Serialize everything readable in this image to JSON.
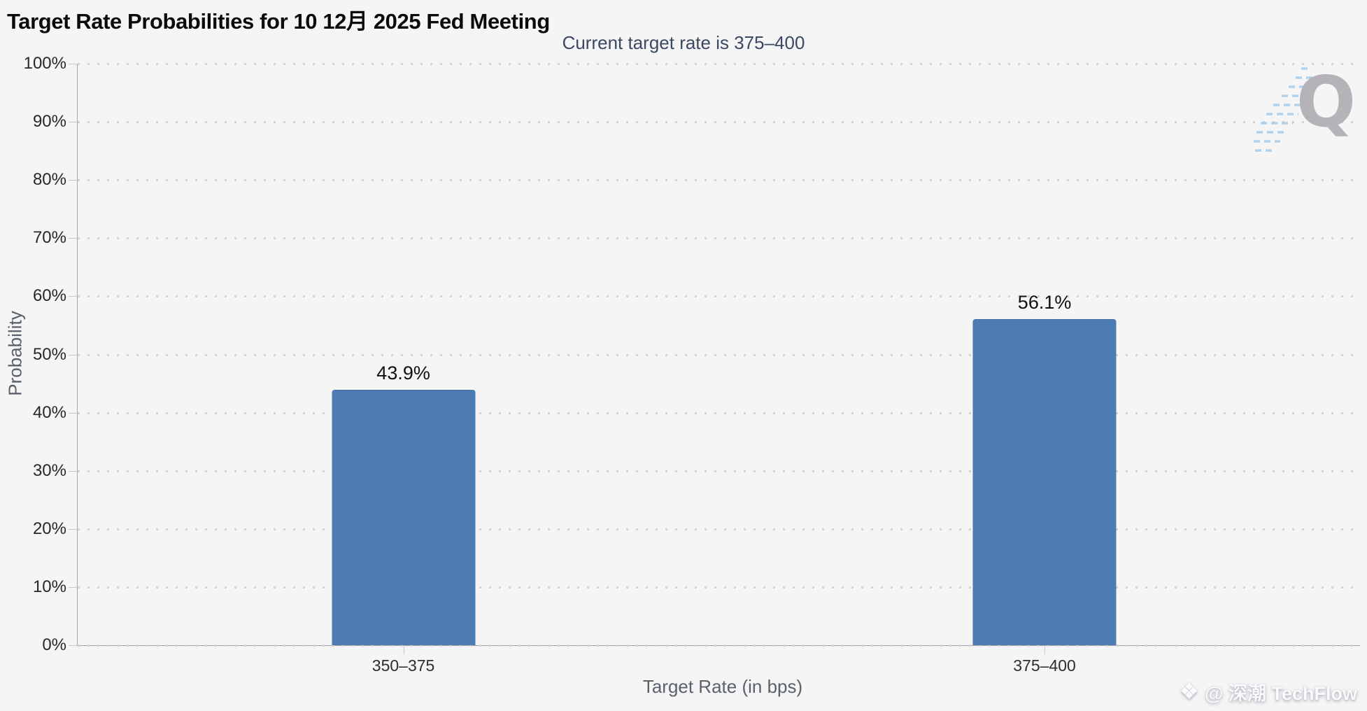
{
  "chart_data": {
    "type": "bar",
    "title": "Target Rate Probabilities for 10 12月 2025 Fed Meeting",
    "subtitle": "Current target rate is 375–400",
    "categories": [
      "350–375",
      "375–400"
    ],
    "values": [
      43.9,
      56.1
    ],
    "value_labels": [
      "43.9%",
      "56.1%"
    ],
    "xlabel": "Target Rate (in bps)",
    "ylabel": "Probability",
    "ylim": [
      0,
      100
    ],
    "ytick_step": 10,
    "ytick_labels": [
      "0%",
      "10%",
      "20%",
      "30%",
      "40%",
      "50%",
      "60%",
      "70%",
      "80%",
      "90%",
      "100%"
    ],
    "grid": "dotted-horizontal",
    "legend": "none"
  },
  "colors": {
    "background": "#f5f5f6",
    "bar": "#4d7cb4",
    "subtitle_text": "#3b4962"
  },
  "watermarks": {
    "logo_letter": "Q",
    "credit_icon": "diamond-icon",
    "credit_text": "@ 深潮 TechFlow"
  }
}
